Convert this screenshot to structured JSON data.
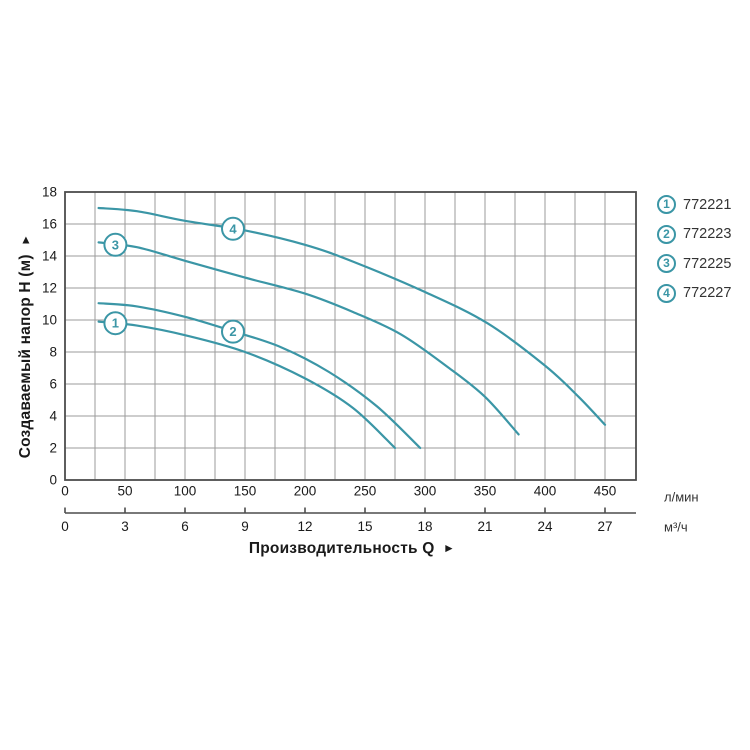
{
  "axes": {
    "y_title": "Создаваемый напор H (м)",
    "y_arrow": "▲",
    "x_title": "Производительность Q",
    "x_arrow": "►",
    "primary_unit": "л/мин",
    "secondary_unit": "м³/ч"
  },
  "legend": {
    "items": [
      {
        "num": "1",
        "label": "772221"
      },
      {
        "num": "2",
        "label": "772223"
      },
      {
        "num": "3",
        "label": "772225"
      },
      {
        "num": "4",
        "label": "772227"
      }
    ]
  },
  "chart_data": {
    "type": "line",
    "title": "",
    "xlabel": "Производительность Q",
    "ylabel": "Создаваемый напор H (м)",
    "x_primary": {
      "unit": "л/мин",
      "tick_labels": [
        0,
        50,
        100,
        150,
        200,
        250,
        300,
        350,
        400,
        450
      ],
      "grid_step": 25,
      "range": [
        0,
        476
      ]
    },
    "x_secondary": {
      "unit": "м³/ч",
      "tick_labels": [
        0,
        3,
        6,
        9,
        12,
        15,
        18,
        21,
        24,
        27
      ],
      "lpm_per_unit": 16.667
    },
    "y_axis": {
      "tick_labels": [
        0,
        2,
        4,
        6,
        8,
        10,
        12,
        14,
        16,
        18
      ],
      "range": [
        0,
        18
      ],
      "grid_step": 2
    },
    "grid": true,
    "legend_position": "right-top",
    "series": [
      {
        "num": "1",
        "model": "772221",
        "label_at": {
          "q": 42,
          "h": 9.8
        },
        "points": [
          [
            28,
            9.9
          ],
          [
            60,
            9.65
          ],
          [
            100,
            9.05
          ],
          [
            150,
            8.0
          ],
          [
            200,
            6.35
          ],
          [
            240,
            4.5
          ],
          [
            275,
            2.0
          ]
        ]
      },
      {
        "num": "2",
        "model": "772223",
        "label_at": {
          "q": 140,
          "h": 9.27
        },
        "points": [
          [
            28,
            11.05
          ],
          [
            60,
            10.85
          ],
          [
            100,
            10.2
          ],
          [
            140,
            9.3
          ],
          [
            180,
            8.3
          ],
          [
            220,
            6.75
          ],
          [
            260,
            4.6
          ],
          [
            296,
            2.0
          ]
        ]
      },
      {
        "num": "3",
        "model": "772225",
        "label_at": {
          "q": 42,
          "h": 14.7
        },
        "points": [
          [
            28,
            14.85
          ],
          [
            60,
            14.55
          ],
          [
            100,
            13.7
          ],
          [
            150,
            12.65
          ],
          [
            200,
            11.65
          ],
          [
            240,
            10.5
          ],
          [
            280,
            9.1
          ],
          [
            320,
            7.0
          ],
          [
            350,
            5.2
          ],
          [
            378,
            2.85
          ]
        ]
      },
      {
        "num": "4",
        "model": "772227",
        "label_at": {
          "q": 140,
          "h": 15.7
        },
        "points": [
          [
            28,
            17.0
          ],
          [
            60,
            16.8
          ],
          [
            100,
            16.2
          ],
          [
            150,
            15.6
          ],
          [
            200,
            14.7
          ],
          [
            240,
            13.65
          ],
          [
            300,
            11.75
          ],
          [
            352,
            9.8
          ],
          [
            400,
            7.15
          ],
          [
            428,
            5.2
          ],
          [
            450,
            3.45
          ]
        ]
      }
    ],
    "colors": {
      "curve": "#3b96a6",
      "grid": "#9b9b9b",
      "frame": "#4d4d4d",
      "tick_text": "#1a1a1a",
      "legend_text": "#333333",
      "background": "#ffffff"
    }
  }
}
